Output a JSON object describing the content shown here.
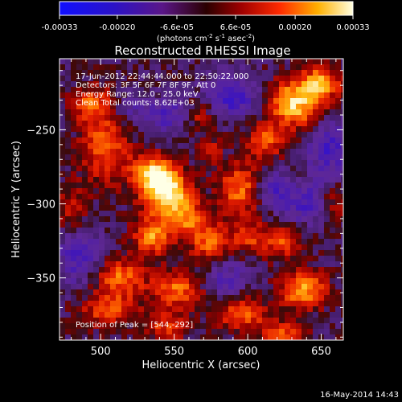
{
  "chart_data": {
    "type": "heatmap",
    "title": "Reconstructed RHESSI Image",
    "xlabel": "Heliocentric X (arcsec)",
    "ylabel": "Heliocentric Y (arcsec)",
    "x_ticks": [
      "500",
      "550",
      "600",
      "650"
    ],
    "y_ticks": [
      "-250",
      "-300",
      "-350"
    ],
    "xlim": [
      472,
      665
    ],
    "ylim": [
      -392,
      -202
    ],
    "colorbar": {
      "tick_labels": [
        "-0.00033",
        "-0.00020",
        "-6.6e-05",
        "6.6e-05",
        "0.00020",
        "0.00033"
      ],
      "tick_values": [
        -0.00033,
        -0.0002,
        -6.6e-05,
        6.6e-05,
        0.0002,
        0.00033
      ],
      "range": [
        -0.00033,
        0.00033
      ],
      "unit_prefix": "(photons cm",
      "unit_sup1": "-2",
      "unit_mid": " s",
      "unit_sup2": "-1",
      "unit_mid2": " asec",
      "unit_sup3": "-2",
      "unit_suffix": ")"
    },
    "info_lines": [
      "17-Jun-2012 22:44:44.000 to 22:50:22.000",
      "Detectors: 3F 5F 6F 7F 8F 9F, Att 0",
      "Energy Range: 12.0 - 25.0 keV",
      "Clean     Total counts: 8.62E+03"
    ],
    "peak_label": "Position of Peak = [544,-292]",
    "peak": {
      "x": 544,
      "y": -292,
      "value": 0.00033
    },
    "blobs": [
      {
        "x": 544,
        "y": -292,
        "sx": 11,
        "sy": 10,
        "a": 1.05
      },
      {
        "x": 535,
        "y": -278,
        "sx": 10,
        "sy": 8,
        "a": 0.75
      },
      {
        "x": 557,
        "y": -310,
        "sx": 10,
        "sy": 9,
        "a": 0.6
      },
      {
        "x": 503,
        "y": -260,
        "sx": 12,
        "sy": 18,
        "a": 0.55
      },
      {
        "x": 493,
        "y": -232,
        "sx": 10,
        "sy": 8,
        "a": 0.45
      },
      {
        "x": 535,
        "y": -322,
        "sx": 9,
        "sy": 9,
        "a": 0.7
      },
      {
        "x": 513,
        "y": -350,
        "sx": 12,
        "sy": 9,
        "a": 0.6
      },
      {
        "x": 505,
        "y": -372,
        "sx": 14,
        "sy": 8,
        "a": 0.5
      },
      {
        "x": 552,
        "y": -358,
        "sx": 12,
        "sy": 9,
        "a": 0.6
      },
      {
        "x": 545,
        "y": -383,
        "sx": 10,
        "sy": 7,
        "a": 0.45
      },
      {
        "x": 574,
        "y": -326,
        "sx": 9,
        "sy": 10,
        "a": 0.55
      },
      {
        "x": 594,
        "y": -290,
        "sx": 10,
        "sy": 12,
        "a": 0.6
      },
      {
        "x": 600,
        "y": -322,
        "sx": 8,
        "sy": 8,
        "a": 0.45
      },
      {
        "x": 632,
        "y": -232,
        "sx": 14,
        "sy": 11,
        "a": 0.9
      },
      {
        "x": 650,
        "y": -218,
        "sx": 9,
        "sy": 8,
        "a": 0.65
      },
      {
        "x": 612,
        "y": -258,
        "sx": 9,
        "sy": 8,
        "a": 0.55
      },
      {
        "x": 624,
        "y": -325,
        "sx": 10,
        "sy": 8,
        "a": 0.5
      },
      {
        "x": 638,
        "y": -358,
        "sx": 11,
        "sy": 9,
        "a": 0.75
      },
      {
        "x": 597,
        "y": -375,
        "sx": 12,
        "sy": 8,
        "a": 0.55
      },
      {
        "x": 624,
        "y": -388,
        "sx": 10,
        "sy": 6,
        "a": 0.5
      },
      {
        "x": 568,
        "y": -240,
        "sx": 8,
        "sy": 8,
        "a": 0.35
      },
      {
        "x": 480,
        "y": -305,
        "sx": 8,
        "sy": 12,
        "a": 0.35
      },
      {
        "x": 658,
        "y": -300,
        "sx": 7,
        "sy": 9,
        "a": 0.35
      },
      {
        "x": 575,
        "y": -265,
        "sx": 6,
        "sy": 7,
        "a": 0.3
      }
    ],
    "negative_blobs": [
      {
        "x": 590,
        "y": -228,
        "sx": 14,
        "sy": 10,
        "a": 0.55
      },
      {
        "x": 545,
        "y": -240,
        "sx": 10,
        "sy": 8,
        "a": 0.45
      },
      {
        "x": 655,
        "y": -262,
        "sx": 10,
        "sy": 14,
        "a": 0.5
      },
      {
        "x": 640,
        "y": -300,
        "sx": 12,
        "sy": 10,
        "a": 0.45
      },
      {
        "x": 485,
        "y": -335,
        "sx": 10,
        "sy": 14,
        "a": 0.45
      },
      {
        "x": 585,
        "y": -350,
        "sx": 10,
        "sy": 8,
        "a": 0.4
      },
      {
        "x": 618,
        "y": -290,
        "sx": 8,
        "sy": 8,
        "a": 0.4
      },
      {
        "x": 520,
        "y": -235,
        "sx": 8,
        "sy": 8,
        "a": 0.3
      }
    ]
  },
  "footer": {
    "date": "16-May-2014 14:43"
  }
}
